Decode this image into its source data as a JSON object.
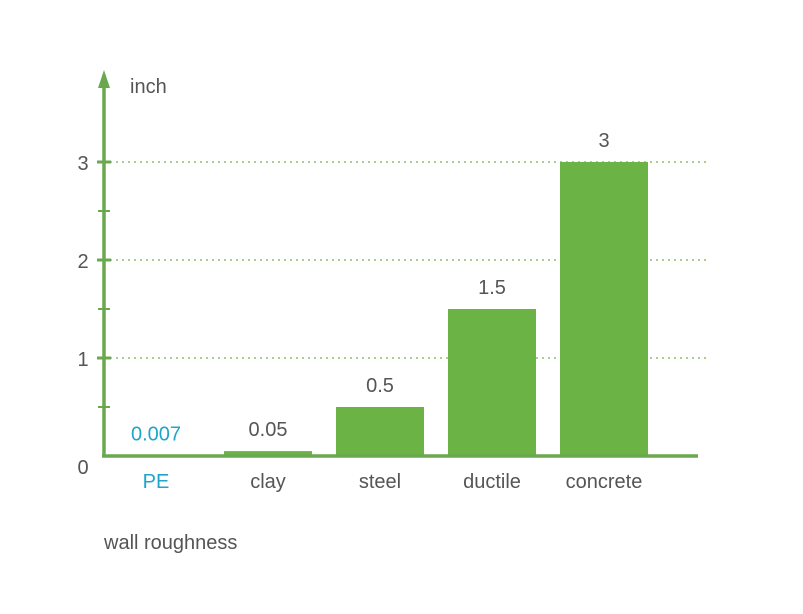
{
  "chart_data": {
    "type": "bar",
    "categories": [
      "PE",
      "clay",
      "steel",
      "ductile",
      "concrete"
    ],
    "values": [
      0.007,
      0.05,
      0.5,
      1.5,
      3
    ],
    "value_labels": [
      "0.007",
      "0.05",
      "0.5",
      "1.5",
      "3"
    ],
    "title": "",
    "xlabel": "wall roughness",
    "ylabel": "inch",
    "ylim": [
      0,
      3.5
    ],
    "yticks": [
      0,
      1,
      2,
      3
    ],
    "yticks_labels": [
      "0",
      "1",
      "2",
      "3"
    ],
    "grid": true,
    "legend": "none"
  },
  "colors": {
    "axis": "#6aa84f",
    "bar": "#6ab344",
    "grid": "#8cc063",
    "text": "#555555",
    "highlight": "#1ea6c8"
  },
  "highlight_category": "PE"
}
